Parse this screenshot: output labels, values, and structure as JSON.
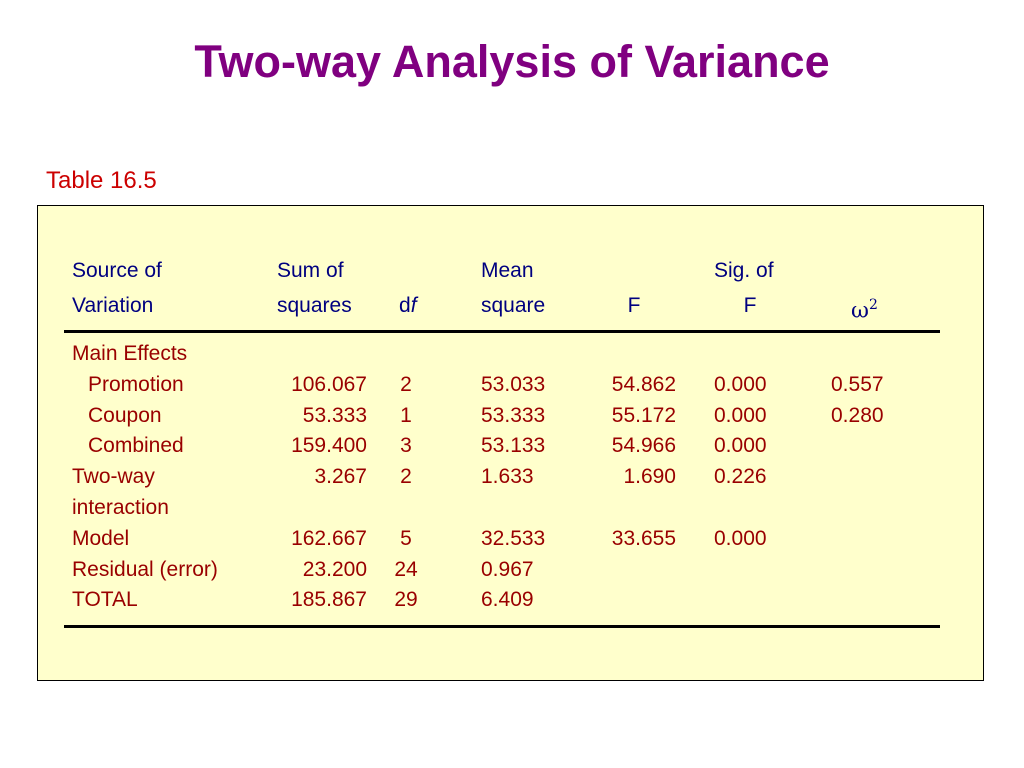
{
  "title": "Two-way Analysis of Variance",
  "caption": "Table 16.5",
  "header": {
    "source": [
      "Source of",
      "Variation"
    ],
    "sum_of_squares": [
      "Sum of",
      "squares"
    ],
    "df": "df",
    "mean_square": [
      "Mean",
      "square"
    ],
    "f": "F",
    "sig_of_f": [
      "Sig. of",
      "F"
    ],
    "omega_sq": "ω",
    "omega_exp": "2"
  },
  "rows": [
    {
      "source": "Main Effects",
      "ss": "",
      "df": "",
      "ms": "",
      "f": "",
      "sig": "",
      "omega": ""
    },
    {
      "source": "Promotion",
      "ss": "106.067",
      "df": "2",
      "ms": "53.033",
      "f": "54.862",
      "sig": "0.000",
      "omega": "0.557"
    },
    {
      "source": "Coupon",
      "ss": "53.333",
      "df": "1",
      "ms": "53.333",
      "f": "55.172",
      "sig": "0.000",
      "omega": "0.280"
    },
    {
      "source": "Combined",
      "ss": "159.400",
      "df": "3",
      "ms": "53.133",
      "f": "54.966",
      "sig": "0.000",
      "omega": ""
    },
    {
      "source": "Two-way",
      "ss": "3.267",
      "df": "2",
      "ms": "1.633",
      "f": "1.690",
      "sig": "0.226",
      "omega": ""
    },
    {
      "source": "interaction",
      "ss": "",
      "df": "",
      "ms": "",
      "f": "",
      "sig": "",
      "omega": ""
    },
    {
      "source": "Model",
      "ss": "162.667",
      "df": "5",
      "ms": "32.533",
      "f": "33.655",
      "sig": "0.000",
      "omega": ""
    },
    {
      "source": "Residual (error)",
      "ss": "23.200",
      "df": "24",
      "ms": "0.967",
      "f": "",
      "sig": "",
      "omega": ""
    },
    {
      "source": "TOTAL",
      "ss": "185.867",
      "df": "29",
      "ms": "6.409",
      "f": "",
      "sig": "",
      "omega": ""
    }
  ],
  "colors": {
    "title": "#800080",
    "caption": "#cc0000",
    "header": "#000080",
    "body": "#990000",
    "panel": "#ffffcc"
  }
}
